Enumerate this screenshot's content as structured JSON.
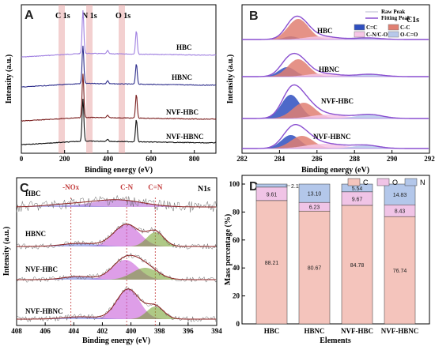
{
  "chart_data": [
    {
      "panel": "A",
      "type": "line",
      "xlabel": "Binding energy (eV)",
      "ylabel": "Intensity (a.u.)",
      "xlim": [
        0,
        900
      ],
      "xticks": [
        0,
        200,
        400,
        600,
        800
      ],
      "annotations": [
        "C 1s",
        "N 1s",
        "O 1s"
      ],
      "peak_positions": {
        "C 1s": 285,
        "N 1s": 399,
        "O 1s": 532
      },
      "series": [
        {
          "name": "HBC",
          "color": "#9f7fe0"
        },
        {
          "name": "HBNC",
          "color": "#2e2e8c"
        },
        {
          "name": "NVF-HBC",
          "color": "#7a1f1f"
        },
        {
          "name": "NVF-HBNC",
          "color": "#111111"
        }
      ]
    },
    {
      "panel": "B",
      "type": "area",
      "title": "C1s",
      "xlabel": "Binding energy (eV)",
      "ylabel": "Intensity (a.u.)",
      "xlim": [
        282,
        292
      ],
      "xticks": [
        282,
        284,
        286,
        288,
        290,
        292
      ],
      "legend": [
        "Raw Peak",
        "Fitting Peak",
        "C=C",
        "C-C",
        "C-N/C-O",
        "O-C=O"
      ],
      "legend_colors": [
        "#cfcfdf",
        "#8a4fd0",
        "#2f4fbf",
        "#e07f72",
        "#f6c6e6",
        "#b7c8ea"
      ],
      "samples": [
        "HBC",
        "HBNC",
        "NVF-HBC",
        "NVF-HBNC"
      ]
    },
    {
      "panel": "C",
      "type": "area",
      "title": "N1s",
      "xlabel": "Binding energy (eV)",
      "ylabel": "Intensity (a.u.)",
      "xlim": [
        408,
        394
      ],
      "xticks": [
        408,
        406,
        404,
        402,
        400,
        398,
        396,
        394
      ],
      "annotations": [
        "-NOx",
        "C-N",
        "C=N"
      ],
      "annotation_positions": {
        "-NOx": 404.2,
        "C-N": 400.3,
        "C=N": 398.3
      },
      "samples": [
        "HBC",
        "HBNC",
        "NVF-HBC",
        "NVF-HBNC"
      ]
    },
    {
      "panel": "D",
      "type": "bar",
      "stacked": true,
      "xlabel": "Elements",
      "ylabel": "Mass percentage (%)",
      "ylim": [
        0,
        100
      ],
      "yticks": [
        0,
        20,
        40,
        60,
        80,
        100
      ],
      "categories": [
        "HBC",
        "HBNC",
        "NVF-HBC",
        "NVF-HBNC"
      ],
      "series": [
        {
          "name": "C",
          "color": "#f4c4bc",
          "values": [
            88.21,
            80.67,
            84.78,
            76.74
          ]
        },
        {
          "name": "O",
          "color": "#f0c4e6",
          "values": [
            9.61,
            6.23,
            9.67,
            8.43
          ]
        },
        {
          "name": "N",
          "color": "#b3c7ea",
          "values": [
            2.18,
            13.1,
            5.54,
            14.83
          ]
        }
      ]
    }
  ]
}
